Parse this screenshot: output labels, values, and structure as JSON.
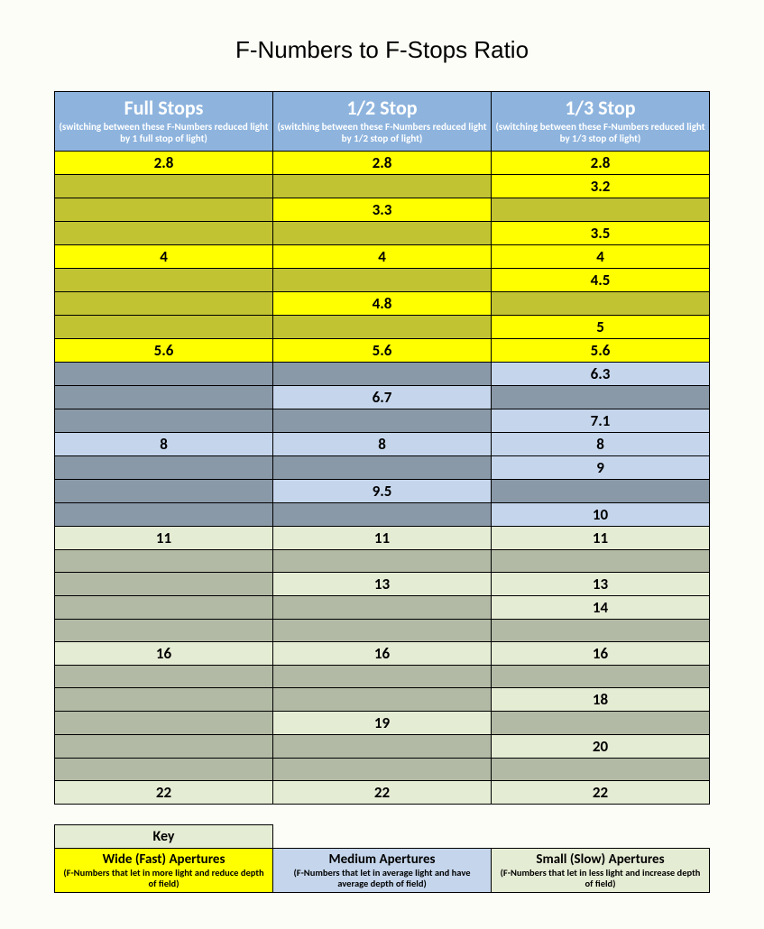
{
  "title": "F-Numbers to F-Stops Ratio",
  "colors": {
    "page_bg": "#fdfdf7",
    "header_bg": "#8eb4de",
    "header_text": "#ffffff",
    "border": "#000000",
    "wide_bright": "#ffff00",
    "wide_dim": "#c1c332",
    "medium_bright": "#c5d6ec",
    "medium_dim": "#8a99a8",
    "small_bright": "#e5ecd4",
    "small_dim": "#b2baa5"
  },
  "columns": [
    {
      "title": "Full Stops",
      "sub": "(switching between these F-Numbers reduced light by 1 full stop of light)"
    },
    {
      "title": "1/2 Stop",
      "sub": "(switching between these F-Numbers reduced light by 1/2 stop of light)"
    },
    {
      "title": "1/3 Stop",
      "sub": "(switching between these F-Numbers reduced light by 1/3 stop of light)"
    }
  ],
  "rows": [
    {
      "band": "wide",
      "full": {
        "v": "2.8",
        "t": "bright"
      },
      "half": {
        "v": "2.8",
        "t": "bright"
      },
      "third": {
        "v": "2.8",
        "t": "bright"
      }
    },
    {
      "band": "wide",
      "full": {
        "v": "",
        "t": "dim"
      },
      "half": {
        "v": "",
        "t": "dim"
      },
      "third": {
        "v": "3.2",
        "t": "bright"
      }
    },
    {
      "band": "wide",
      "full": {
        "v": "",
        "t": "dim"
      },
      "half": {
        "v": "3.3",
        "t": "bright"
      },
      "third": {
        "v": "",
        "t": "dim"
      }
    },
    {
      "band": "wide",
      "full": {
        "v": "",
        "t": "dim"
      },
      "half": {
        "v": "",
        "t": "dim"
      },
      "third": {
        "v": "3.5",
        "t": "bright"
      }
    },
    {
      "band": "wide",
      "full": {
        "v": "4",
        "t": "bright"
      },
      "half": {
        "v": "4",
        "t": "bright"
      },
      "third": {
        "v": "4",
        "t": "bright"
      }
    },
    {
      "band": "wide",
      "full": {
        "v": "",
        "t": "dim"
      },
      "half": {
        "v": "",
        "t": "dim"
      },
      "third": {
        "v": "4.5",
        "t": "bright"
      }
    },
    {
      "band": "wide",
      "full": {
        "v": "",
        "t": "dim"
      },
      "half": {
        "v": "4.8",
        "t": "bright"
      },
      "third": {
        "v": "",
        "t": "dim"
      }
    },
    {
      "band": "wide",
      "full": {
        "v": "",
        "t": "dim"
      },
      "half": {
        "v": "",
        "t": "dim"
      },
      "third": {
        "v": "5",
        "t": "bright"
      }
    },
    {
      "band": "wide",
      "full": {
        "v": "5.6",
        "t": "bright"
      },
      "half": {
        "v": "5.6",
        "t": "bright"
      },
      "third": {
        "v": "5.6",
        "t": "bright"
      }
    },
    {
      "band": "medium",
      "full": {
        "v": "",
        "t": "dim"
      },
      "half": {
        "v": "",
        "t": "dim"
      },
      "third": {
        "v": "6.3",
        "t": "bright"
      }
    },
    {
      "band": "medium",
      "full": {
        "v": "",
        "t": "dim"
      },
      "half": {
        "v": "6.7",
        "t": "bright"
      },
      "third": {
        "v": "",
        "t": "dim"
      }
    },
    {
      "band": "medium",
      "full": {
        "v": "",
        "t": "dim"
      },
      "half": {
        "v": "",
        "t": "dim"
      },
      "third": {
        "v": "7.1",
        "t": "bright"
      }
    },
    {
      "band": "medium",
      "full": {
        "v": "8",
        "t": "bright"
      },
      "half": {
        "v": "8",
        "t": "bright"
      },
      "third": {
        "v": "8",
        "t": "bright"
      }
    },
    {
      "band": "medium",
      "full": {
        "v": "",
        "t": "dim"
      },
      "half": {
        "v": "",
        "t": "dim"
      },
      "third": {
        "v": "9",
        "t": "bright"
      }
    },
    {
      "band": "medium",
      "full": {
        "v": "",
        "t": "dim"
      },
      "half": {
        "v": "9.5",
        "t": "bright"
      },
      "third": {
        "v": "",
        "t": "dim"
      }
    },
    {
      "band": "medium",
      "full": {
        "v": "",
        "t": "dim"
      },
      "half": {
        "v": "",
        "t": "dim"
      },
      "third": {
        "v": "10",
        "t": "bright"
      }
    },
    {
      "band": "small",
      "full": {
        "v": "11",
        "t": "bright"
      },
      "half": {
        "v": "11",
        "t": "bright"
      },
      "third": {
        "v": "11",
        "t": "bright"
      }
    },
    {
      "band": "small",
      "full": {
        "v": "",
        "t": "dim"
      },
      "half": {
        "v": "",
        "t": "dim"
      },
      "third": {
        "v": "",
        "t": "dim"
      }
    },
    {
      "band": "small",
      "full": {
        "v": "",
        "t": "dim"
      },
      "half": {
        "v": "13",
        "t": "bright"
      },
      "third": {
        "v": "13",
        "t": "bright"
      }
    },
    {
      "band": "small",
      "full": {
        "v": "",
        "t": "dim"
      },
      "half": {
        "v": "",
        "t": "dim"
      },
      "third": {
        "v": "14",
        "t": "bright"
      }
    },
    {
      "band": "small",
      "full": {
        "v": "",
        "t": "dim"
      },
      "half": {
        "v": "",
        "t": "dim"
      },
      "third": {
        "v": "",
        "t": "dim"
      }
    },
    {
      "band": "small",
      "full": {
        "v": "16",
        "t": "bright"
      },
      "half": {
        "v": "16",
        "t": "bright"
      },
      "third": {
        "v": "16",
        "t": "bright"
      }
    },
    {
      "band": "small",
      "full": {
        "v": "",
        "t": "dim"
      },
      "half": {
        "v": "",
        "t": "dim"
      },
      "third": {
        "v": "",
        "t": "dim"
      }
    },
    {
      "band": "small",
      "full": {
        "v": "",
        "t": "dim"
      },
      "half": {
        "v": "",
        "t": "dim"
      },
      "third": {
        "v": "18",
        "t": "bright"
      }
    },
    {
      "band": "small",
      "full": {
        "v": "",
        "t": "dim"
      },
      "half": {
        "v": "19",
        "t": "bright"
      },
      "third": {
        "v": "",
        "t": "dim"
      }
    },
    {
      "band": "small",
      "full": {
        "v": "",
        "t": "dim"
      },
      "half": {
        "v": "",
        "t": "dim"
      },
      "third": {
        "v": "20",
        "t": "bright"
      }
    },
    {
      "band": "small",
      "full": {
        "v": "",
        "t": "dim"
      },
      "half": {
        "v": "",
        "t": "dim"
      },
      "third": {
        "v": "",
        "t": "dim"
      }
    },
    {
      "band": "small",
      "full": {
        "v": "22",
        "t": "bright"
      },
      "half": {
        "v": "22",
        "t": "bright"
      },
      "third": {
        "v": "22",
        "t": "bright"
      }
    }
  ],
  "key": {
    "label": "Key",
    "items": [
      {
        "title": "Wide (Fast) Apertures",
        "sub": "(F-Numbers that let in more light and reduce depth of field)",
        "color": "#ffff00"
      },
      {
        "title": "Medium Apertures",
        "sub": "(F-Numbers that let in average light and have average depth of field)",
        "color": "#c5d6ec"
      },
      {
        "title": "Small (Slow) Apertures",
        "sub": "(F-Numbers that let in less light and increase depth of field)",
        "color": "#e5ecd4"
      }
    ]
  }
}
